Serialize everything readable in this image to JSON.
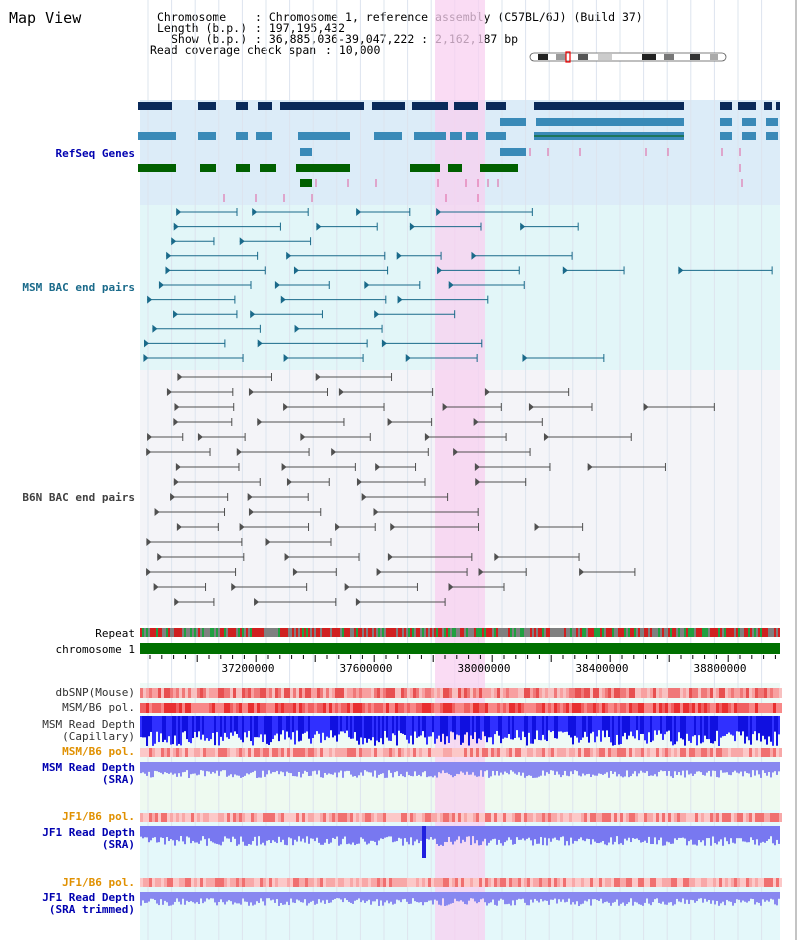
{
  "page": {
    "title": "Map View"
  },
  "header": {
    "chromosome_key": "Chromosome",
    "chromosome_val": "Chromosome 1, reference assembly (C57BL/6J) (Build 37)",
    "length_key": "Length (b.p.)",
    "length_val": "197,195,432",
    "show_key": "Show (b.p.)",
    "show_val": "36,885,036-39,047,222 : 2,162,187 bp",
    "span_key": "Read coverage check span",
    "span_val": "10,000"
  },
  "tracks": {
    "refseq": {
      "label": "RefSeq Genes",
      "color": "#0000b0"
    },
    "msm_bac": {
      "label": "MSM BAC end pairs",
      "color": "#1a5a8a"
    },
    "b6n_bac": {
      "label": "B6N BAC end pairs",
      "color": "#404040"
    },
    "repeat": {
      "label": "Repeat"
    },
    "chrom": {
      "label": "chromosome 1"
    },
    "dbsnp": {
      "label": "dbSNP(Mouse)"
    },
    "msm_b6_pol_1": {
      "label": "MSM/B6 pol."
    },
    "msm_read_cap_1": {
      "label": "MSM Read Depth"
    },
    "msm_read_cap_2": {
      "label": "(Capillary)"
    },
    "msm_b6_pol_2": {
      "label": "MSM/B6 pol."
    },
    "msm_read_sra_1": {
      "label": "MSM Read Depth"
    },
    "msm_read_sra_2": {
      "label": "(SRA)"
    },
    "jf1_b6_pol_1": {
      "label": "JF1/B6 pol."
    },
    "jf1_read_sra_1": {
      "label": "JF1 Read Depth"
    },
    "jf1_read_sra_2": {
      "label": "(SRA)"
    },
    "jf1_b6_pol_2": {
      "label": "JF1/B6 pol."
    },
    "jf1_read_trim_1": {
      "label": "JF1 Read Depth"
    },
    "jf1_read_trim_2": {
      "label": "(SRA trimmed)"
    }
  },
  "axis": {
    "ticks": [
      "37200000",
      "37600000",
      "38000000",
      "38400000",
      "38800000"
    ]
  },
  "colors": {
    "highlight": "#f8d0f0",
    "refseq_bg": "#dcecf8",
    "msm_bg": "#e2f6f8",
    "b6n_bg": "#f4f4f8",
    "chrom_bar": "#007000",
    "gene_dark": "#0a2a5a",
    "gene_mid": "#3a8ab8",
    "gene_green": "#006000",
    "label_blue": "#0000b0",
    "label_orange": "#e09000"
  }
}
